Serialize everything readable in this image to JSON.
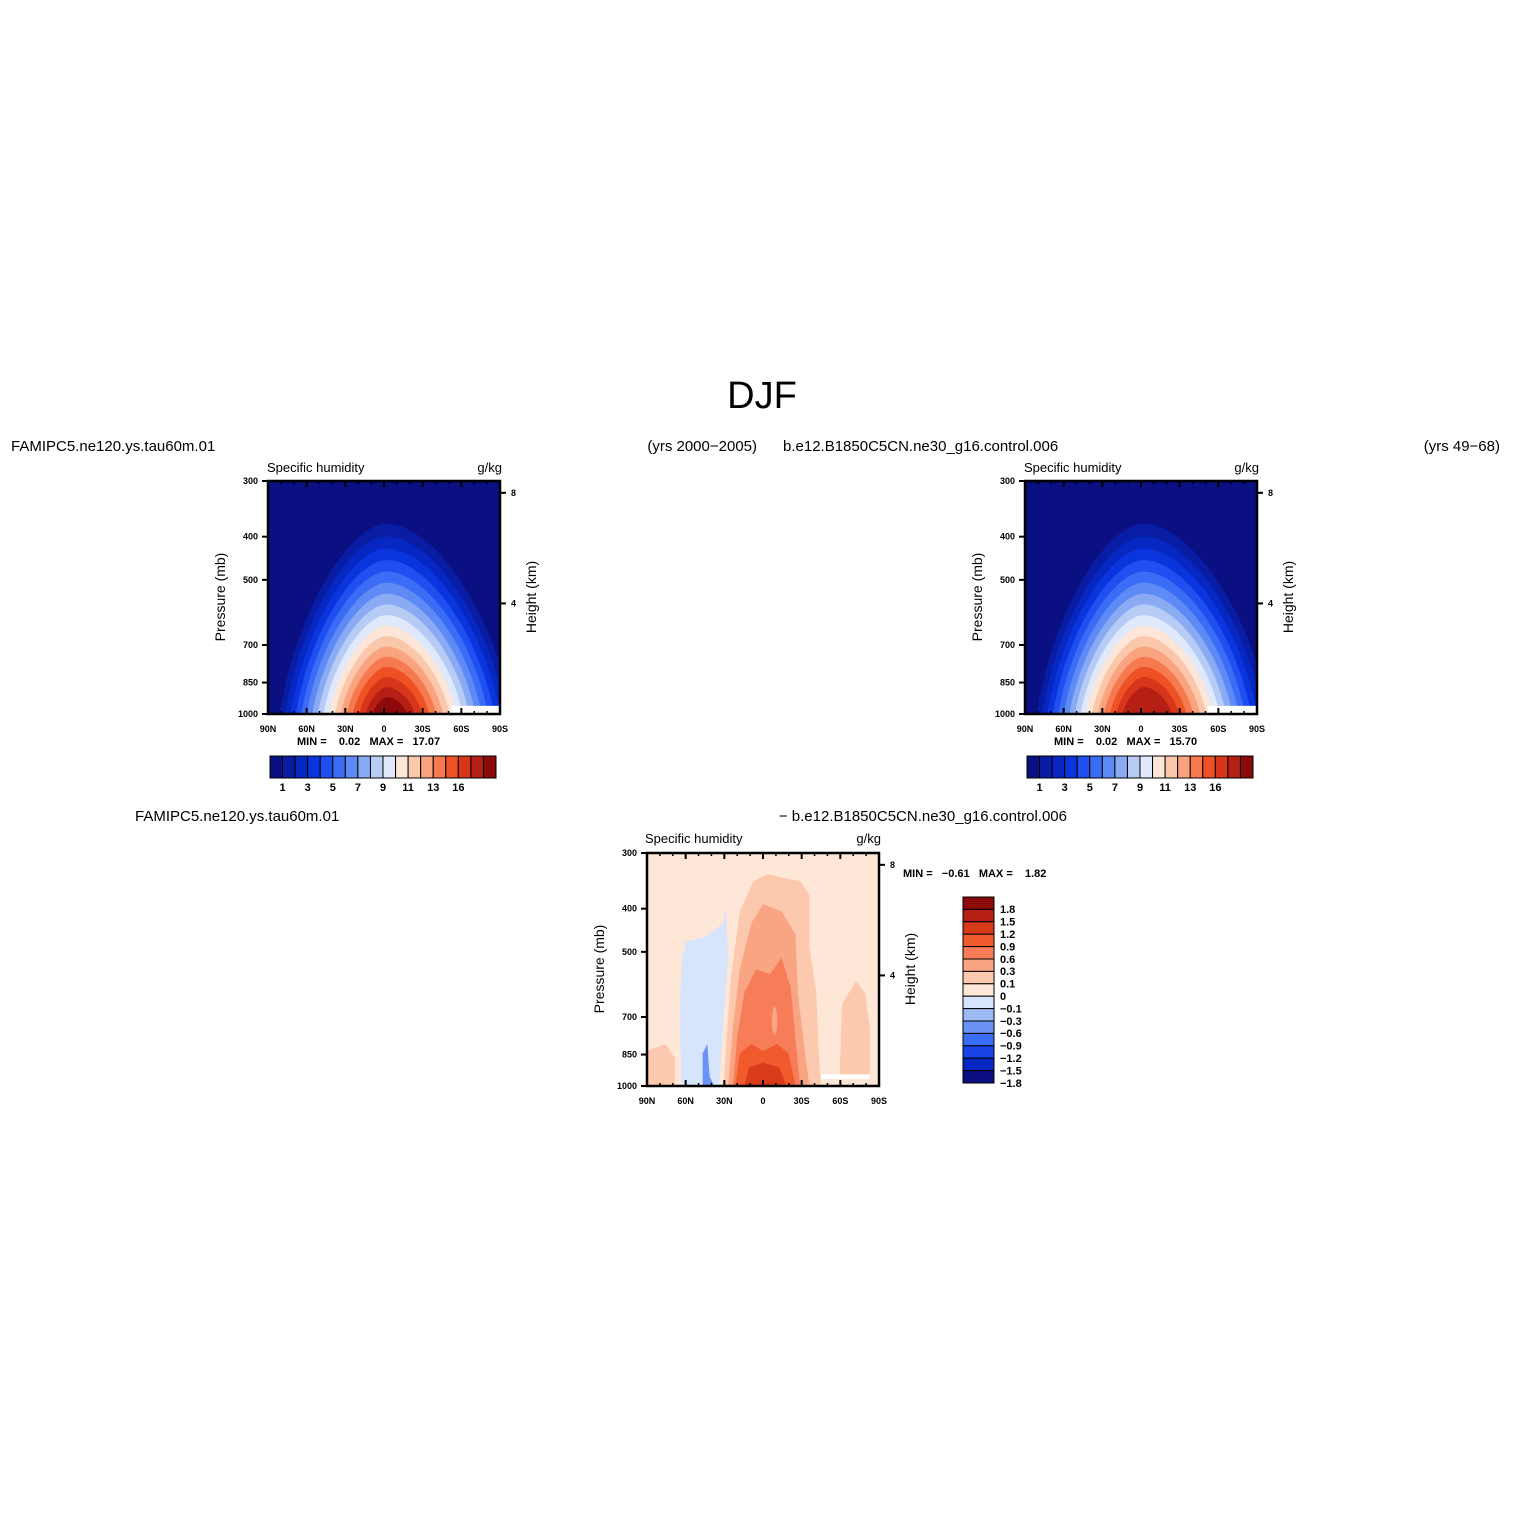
{
  "title": "DJF",
  "colors": {
    "frame": "#000000",
    "bg": "#ffffff",
    "abs_palette": [
      "#0a0f82",
      "#081ca4",
      "#0627c2",
      "#0a35de",
      "#1f4ff0",
      "#3b6cf5",
      "#5e8af6",
      "#8aabf4",
      "#b6ccf5",
      "#dfe9fb",
      "#fde6d8",
      "#fbc7aa",
      "#f9a37f",
      "#f6794f",
      "#ed5124",
      "#d8361a",
      "#b51f14",
      "#8c0b0a"
    ],
    "diff_palette": [
      "#0a0f82",
      "#0627c2",
      "#1a43e6",
      "#3b6cf5",
      "#6a93f5",
      "#9dbaf4",
      "#d6e5fb",
      "#fee7d7",
      "#fdc9ae",
      "#f9a584",
      "#f67d57",
      "#f15a2c",
      "#d93a1a",
      "#b51f14",
      "#8c0b0a"
    ]
  },
  "panels": [
    {
      "case_left": "FAMIPC5.ne120.ys.tau60m.01",
      "case_right": "(yrs 2000−2005)",
      "var_title": "Specific humidity",
      "units": "g/kg",
      "ylabel_left": "Pressure (mb)",
      "ylabel_right": "Height (km)",
      "stats": "MIN =    0.02   MAX =   17.07"
    },
    {
      "case_left": "b.e12.B1850C5CN.ne30_g16.control.006",
      "case_right": "(yrs 49−68)",
      "var_title": "Specific humidity",
      "units": "g/kg",
      "ylabel_left": "Pressure (mb)",
      "ylabel_right": "Height (km)",
      "stats": "MIN =    0.02   MAX =   15.70"
    },
    {
      "case_left": "FAMIPC5.ne120.ys.tau60m.01",
      "case_right": "− b.e12.B1850C5CN.ne30_g16.control.006",
      "var_title": "Specific humidity",
      "units": "g/kg",
      "ylabel_left": "Pressure (mb)",
      "ylabel_right": "Height (km)",
      "stats": "MIN =   −0.61   MAX =    1.82"
    }
  ],
  "chart_data": [
    {
      "type": "heatmap",
      "title": "Specific humidity",
      "units": "g/kg",
      "x": [
        "90N",
        "60N",
        "30N",
        "0",
        "30S",
        "60S",
        "90S"
      ],
      "y_pressure_mb": [
        300,
        400,
        500,
        700,
        850,
        1000
      ],
      "y_height_km": [
        4,
        8
      ],
      "xlabel": "",
      "ylabel": "Pressure (mb)",
      "ylabel_right": "Height (km)",
      "ylim": [
        1000,
        300
      ],
      "min": 0.02,
      "max": 17.07,
      "colorbar_ticks": [
        "1",
        "3",
        "5",
        "7",
        "9",
        "11",
        "13",
        "16"
      ],
      "levels": [
        1,
        2,
        3,
        4,
        5,
        6,
        7,
        8,
        9,
        10,
        11,
        12,
        13,
        14,
        15,
        16,
        17
      ],
      "peak_latitude": 0,
      "peak_pressure_mb": 1000
    },
    {
      "type": "heatmap",
      "title": "Specific humidity",
      "units": "g/kg",
      "x": [
        "90N",
        "60N",
        "30N",
        "0",
        "30S",
        "60S",
        "90S"
      ],
      "y_pressure_mb": [
        300,
        400,
        500,
        700,
        850,
        1000
      ],
      "y_height_km": [
        4,
        8
      ],
      "xlabel": "",
      "ylabel": "Pressure (mb)",
      "ylabel_right": "Height (km)",
      "ylim": [
        1000,
        300
      ],
      "min": 0.02,
      "max": 15.7,
      "colorbar_ticks": [
        "1",
        "3",
        "5",
        "7",
        "9",
        "11",
        "13",
        "16"
      ],
      "levels": [
        1,
        2,
        3,
        4,
        5,
        6,
        7,
        8,
        9,
        10,
        11,
        12,
        13,
        14,
        15,
        16,
        17
      ],
      "peak_latitude": 0,
      "peak_pressure_mb": 1000
    },
    {
      "type": "heatmap",
      "title": "Specific humidity",
      "units": "g/kg",
      "x": [
        "90N",
        "60N",
        "30N",
        "0",
        "30S",
        "60S",
        "90S"
      ],
      "y_pressure_mb": [
        300,
        400,
        500,
        700,
        850,
        1000
      ],
      "y_height_km": [
        4,
        8
      ],
      "xlabel": "",
      "ylabel": "Pressure (mb)",
      "ylabel_right": "Height (km)",
      "ylim": [
        1000,
        300
      ],
      "min": -0.61,
      "max": 1.82,
      "colorbar_labels": [
        "1.8",
        "1.5",
        "1.2",
        "0.9",
        "0.6",
        "0.3",
        "0.1",
        "0",
        "−0.1",
        "−0.3",
        "−0.6",
        "−0.9",
        "−1.2",
        "−1.5",
        "−1.8"
      ],
      "levels": [
        -1.8,
        -1.5,
        -1.2,
        -0.9,
        -0.6,
        -0.3,
        -0.1,
        0,
        0.1,
        0.3,
        0.6,
        0.9,
        1.2,
        1.5,
        1.8
      ]
    }
  ]
}
